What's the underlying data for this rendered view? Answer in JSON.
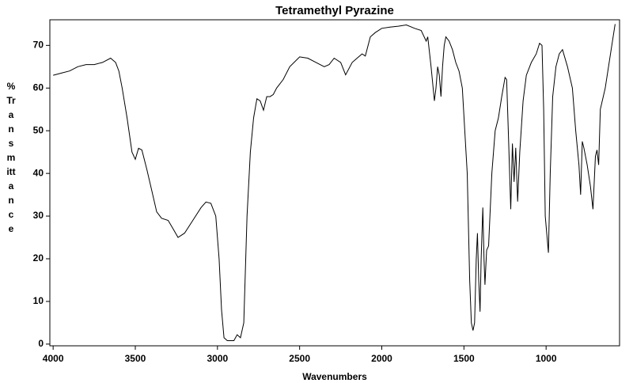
{
  "chart_data": {
    "type": "line",
    "title": "Tetramethyl Pyrazine",
    "x_label": "Wavenumbers",
    "y_label": "% Transmittance",
    "x": [
      4000,
      3950,
      3900,
      3850,
      3800,
      3750,
      3700,
      3650,
      3620,
      3600,
      3580,
      3550,
      3520,
      3500,
      3480,
      3460,
      3430,
      3400,
      3370,
      3340,
      3300,
      3270,
      3240,
      3200,
      3150,
      3100,
      3070,
      3040,
      3010,
      2990,
      2975,
      2960,
      2940,
      2900,
      2880,
      2860,
      2840,
      2820,
      2800,
      2780,
      2760,
      2740,
      2720,
      2700,
      2680,
      2660,
      2640,
      2600,
      2560,
      2500,
      2450,
      2400,
      2350,
      2320,
      2290,
      2250,
      2220,
      2180,
      2150,
      2120,
      2100,
      2070,
      2040,
      2000,
      1950,
      1900,
      1850,
      1800,
      1760,
      1730,
      1720,
      1700,
      1680,
      1670,
      1660,
      1650,
      1640,
      1630,
      1620,
      1610,
      1590,
      1570,
      1550,
      1530,
      1510,
      1480,
      1465,
      1455,
      1445,
      1435,
      1425,
      1418,
      1410,
      1402,
      1395,
      1385,
      1378,
      1372,
      1362,
      1350,
      1330,
      1310,
      1290,
      1270,
      1250,
      1240,
      1230,
      1215,
      1205,
      1195,
      1185,
      1173,
      1160,
      1140,
      1120,
      1090,
      1060,
      1040,
      1025,
      1015,
      1005,
      986,
      975,
      960,
      940,
      920,
      900,
      870,
      840,
      820,
      800,
      790,
      780,
      770,
      750,
      730,
      715,
      700,
      690,
      680,
      670,
      640,
      600,
      580
    ],
    "series": [
      {
        "name": "Tetramethyl Pyrazine",
        "color": "#000000",
        "values": [
          63,
          63.5,
          64,
          65,
          65.5,
          65.5,
          66,
          67,
          66,
          64,
          60,
          53,
          45,
          43.3,
          45.9,
          45.5,
          41,
          36,
          31,
          29.5,
          29,
          27,
          25,
          26,
          29,
          32,
          33.3,
          33,
          30,
          20,
          8,
          1.5,
          0.8,
          0.8,
          2.2,
          1.5,
          5,
          30,
          45,
          53,
          57.5,
          57,
          54.8,
          58,
          58,
          58.5,
          60,
          62,
          65,
          67.3,
          67,
          66,
          65,
          65.5,
          67,
          66,
          63.1,
          66,
          67,
          68,
          67.5,
          72,
          73,
          74,
          74.3,
          74.5,
          74.8,
          74,
          73.5,
          71,
          72,
          65,
          57,
          60,
          65,
          63,
          58,
          65,
          70,
          72,
          71,
          69,
          66,
          64,
          60,
          40,
          15,
          5,
          3.2,
          5,
          20,
          26,
          15,
          7.6,
          20,
          32,
          20,
          13.9,
          22,
          23,
          40,
          50,
          53,
          58,
          62.5,
          62,
          50,
          31.6,
          47,
          38,
          46,
          33.4,
          45,
          57,
          63,
          66,
          68,
          70.5,
          70,
          55,
          30,
          21.4,
          40,
          58,
          65,
          68,
          69,
          65,
          60,
          50,
          42,
          35,
          47.5,
          46,
          42,
          37,
          31.6,
          44,
          45.5,
          42,
          55,
          60,
          70,
          75
        ]
      }
    ],
    "xlim": [
      4020,
      553
    ],
    "ylim": [
      -0.4,
      76
    ],
    "xticks": [
      4000,
      3500,
      3000,
      2500,
      2000,
      1500,
      1000
    ],
    "yticks": [
      0,
      10,
      20,
      30,
      40,
      50,
      60,
      70
    ],
    "grid": false
  }
}
